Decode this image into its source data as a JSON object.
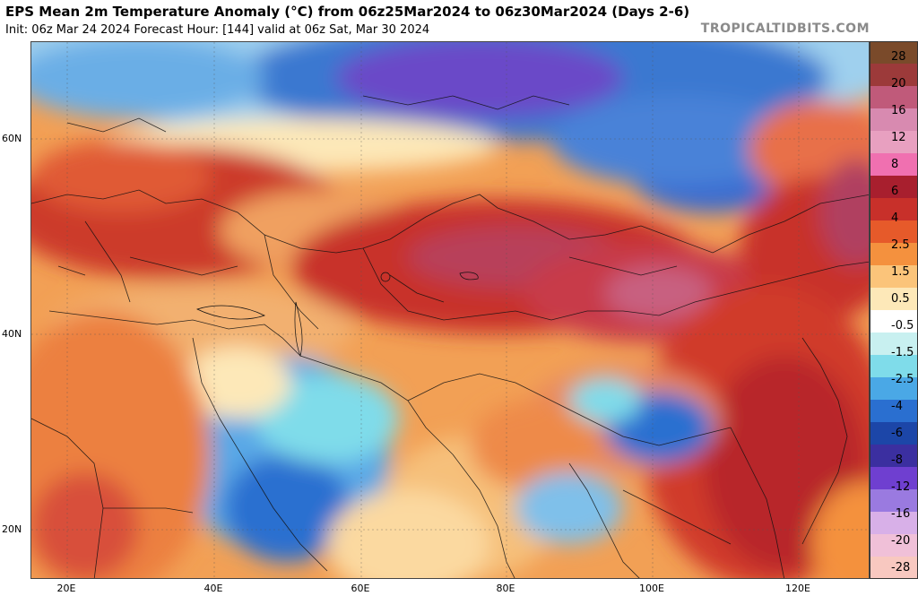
{
  "header": {
    "title": "EPS Mean 2m Temperature Anomaly (°C) from 06z25Mar2024 to 06z30Mar2024 (Days 2-6)",
    "subtitle": "Init: 06z Mar 24 2024   Forecast Hour: [144]   valid at 06z Sat, Mar 30 2024",
    "brand": "TROPICALTIDBITS.COM"
  },
  "axes": {
    "lat_labels": [
      "60N",
      "40N",
      "20N"
    ],
    "lon_labels": [
      "20E",
      "40E",
      "60E",
      "80E",
      "100E",
      "120E"
    ]
  },
  "colorbar": {
    "labels": [
      "28",
      "20",
      "16",
      "12",
      "8",
      "6",
      "4",
      "2.5",
      "1.5",
      "0.5",
      "-0.5",
      "-1.5",
      "-2.5",
      "-4",
      "-6",
      "-8",
      "-12",
      "-16",
      "-20",
      "-28"
    ],
    "colors": [
      "#7a4a2a",
      "#9c3a3a",
      "#c05a7a",
      "#d88ab0",
      "#e8a0c0",
      "#f070b0",
      "#a81f2e",
      "#c8302a",
      "#e65a2a",
      "#f4913e",
      "#fbc47a",
      "#fde8b8",
      "#ffffff",
      "#c8f0f0",
      "#7fdcea",
      "#4aa8e6",
      "#2a6fd0",
      "#1c46a8",
      "#3b2fa0",
      "#6f3fd0",
      "#9a7ae0",
      "#d8b0e8",
      "#f0c0d8",
      "#f8c8c0"
    ]
  }
}
